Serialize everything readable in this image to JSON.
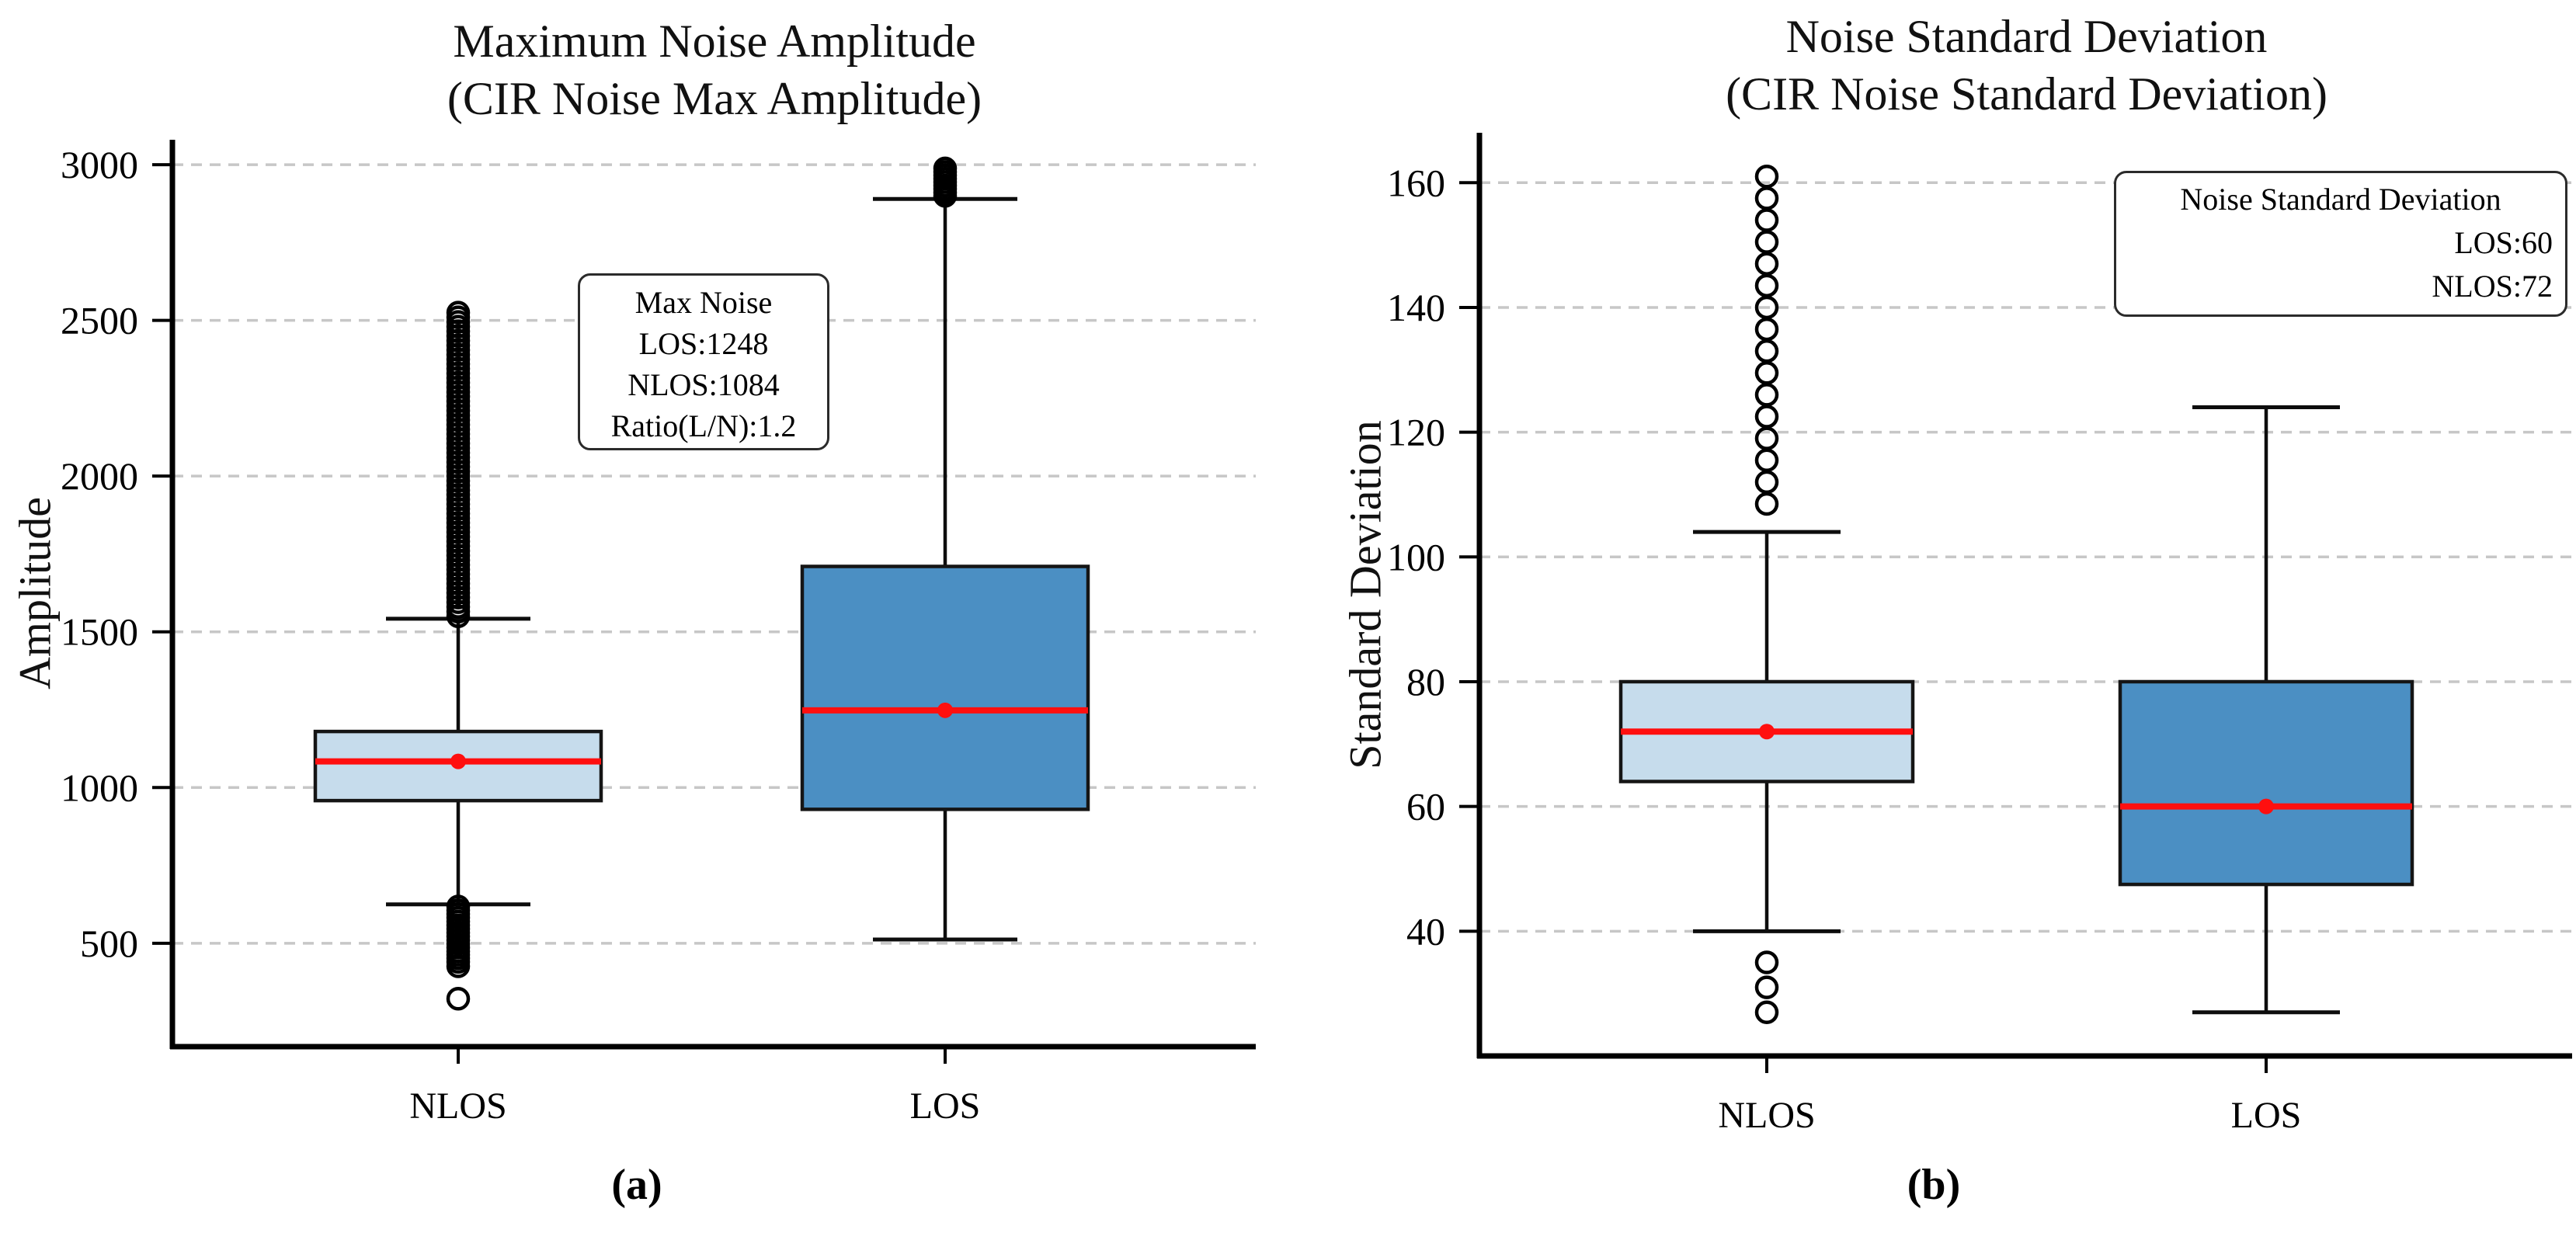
{
  "figure": {
    "background": "#ffffff",
    "caption_a": "(a)",
    "caption_b": "(b)"
  },
  "colors": {
    "nlos_box_fill": "#c6dcec",
    "los_box_fill": "#4b8fc3",
    "box_edge": "#151515",
    "whisker": "#0d0d0d",
    "median_line": "#ff0f0f",
    "mean_dot": "#ff0f0f",
    "grid_line": "#c7c7c7",
    "axis_line": "#000000",
    "outlier_edge": "#000000",
    "text": "#000000"
  },
  "chart_data": [
    {
      "type": "box",
      "title_line1": "Maximum Noise Amplitude",
      "title_line2": "(CIR Noise Max Amplitude)",
      "ylabel": "Amplitude",
      "xlabel": "",
      "categories": [
        "NLOS",
        "LOS"
      ],
      "yticks": [
        500,
        1000,
        1500,
        2000,
        2500,
        3000
      ],
      "ylim": [
        168,
        3080
      ],
      "grid": {
        "axis": "y",
        "style": "dashed",
        "on": true
      },
      "caption": "(a)",
      "annotation": {
        "position": "upper-center",
        "line1": "Max Noise",
        "line2": "LOS:1248",
        "line3": "NLOS:1084",
        "line4": "Ratio(L/N):1.2"
      },
      "boxes": [
        {
          "category": "NLOS",
          "fill": "#c6dcec",
          "q1": 958,
          "median": 1084,
          "q3": 1180,
          "whisker_low": 625,
          "whisker_high": 1542,
          "mean": 1084,
          "outliers_high": [
            1550,
            1565,
            1580,
            1595,
            1610,
            1625,
            1640,
            1655,
            1670,
            1685,
            1700,
            1715,
            1730,
            1745,
            1760,
            1775,
            1790,
            1805,
            1820,
            1835,
            1850,
            1865,
            1880,
            1895,
            1910,
            1925,
            1940,
            1955,
            1970,
            1985,
            2000,
            2015,
            2030,
            2045,
            2060,
            2075,
            2090,
            2105,
            2120,
            2135,
            2150,
            2165,
            2180,
            2195,
            2210,
            2225,
            2240,
            2255,
            2270,
            2285,
            2300,
            2315,
            2330,
            2345,
            2360,
            2375,
            2390,
            2405,
            2420,
            2435,
            2450,
            2465,
            2480,
            2495,
            2510,
            2525
          ],
          "outliers_low": [
            618,
            606,
            594,
            582,
            570,
            558,
            546,
            534,
            522,
            510,
            498,
            486,
            474,
            463,
            452,
            440,
            426,
            322
          ]
        },
        {
          "category": "LOS",
          "fill": "#4b8fc3",
          "q1": 930,
          "median": 1248,
          "q3": 1710,
          "whisker_low": 512,
          "whisker_high": 2890,
          "mean": 1248,
          "outliers_high": [
            2900,
            2911,
            2922,
            2933,
            2944,
            2955,
            2966,
            2977,
            2988
          ],
          "outliers_low": []
        }
      ]
    },
    {
      "type": "box",
      "title_line1": "Noise Standard Deviation",
      "title_line2": "(CIR Noise Standard Deviation)",
      "ylabel": "Standard Deviation",
      "xlabel": "",
      "categories": [
        "NLOS",
        "LOS"
      ],
      "yticks": [
        40,
        60,
        80,
        100,
        120,
        140,
        160
      ],
      "ylim": [
        20,
        168
      ],
      "grid": {
        "axis": "y",
        "style": "dashed",
        "on": true
      },
      "caption": "(b)",
      "legend": {
        "position": "upper-right",
        "line1": "Noise Standard Deviation",
        "line2": "LOS:60",
        "line3": "NLOS:72"
      },
      "boxes": [
        {
          "category": "NLOS",
          "fill": "#c6dcec",
          "q1": 64,
          "median": 72,
          "q3": 80,
          "whisker_low": 40,
          "whisker_high": 104,
          "mean": 72,
          "outliers_high": [
            108.5,
            112,
            115.5,
            119,
            122.5,
            126,
            129.5,
            133,
            136.5,
            140,
            143.5,
            147,
            150.5,
            154,
            157.5,
            161
          ],
          "outliers_low": [
            35,
            31,
            27
          ]
        },
        {
          "category": "LOS",
          "fill": "#4b8fc3",
          "q1": 47.5,
          "median": 60,
          "q3": 80,
          "whisker_low": 27,
          "whisker_high": 124,
          "mean": 60,
          "outliers_high": [],
          "outliers_low": []
        }
      ]
    }
  ]
}
